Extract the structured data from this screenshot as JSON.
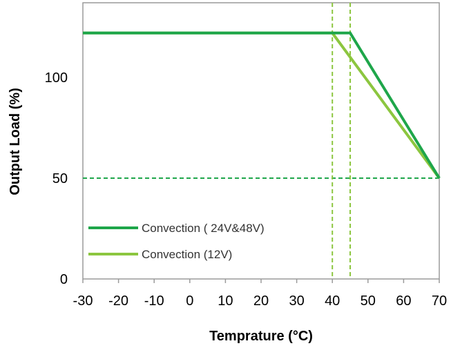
{
  "chart_data": {
    "type": "line",
    "xlabel": "Temprature (°C)",
    "ylabel": "Output  Load (%)",
    "xlim": [
      -30,
      70
    ],
    "ylim": [
      0,
      137
    ],
    "x_ticks": [
      -30,
      -20,
      -10,
      0,
      10,
      20,
      30,
      40,
      50,
      60,
      70
    ],
    "y_ticks": [
      0,
      50,
      100
    ],
    "grid": false,
    "legend_position": "bottom-left",
    "series": [
      {
        "name": "Convection ( 24V&48V)",
        "color": "#1ea64a",
        "x": [
          -30,
          45,
          70
        ],
        "y": [
          122,
          122,
          50
        ]
      },
      {
        "name": "Convection (12V)",
        "color": "#8cc63f",
        "x": [
          -30,
          40,
          70
        ],
        "y": [
          122,
          122,
          50
        ]
      }
    ],
    "reference_lines": [
      {
        "axis": "y",
        "value": 50,
        "style": "dashed",
        "color": "#1ea64a"
      },
      {
        "axis": "x",
        "value": 40,
        "style": "dashed",
        "color": "#8cc63f"
      },
      {
        "axis": "x",
        "value": 45,
        "style": "dashed",
        "color": "#8cc63f"
      }
    ]
  }
}
